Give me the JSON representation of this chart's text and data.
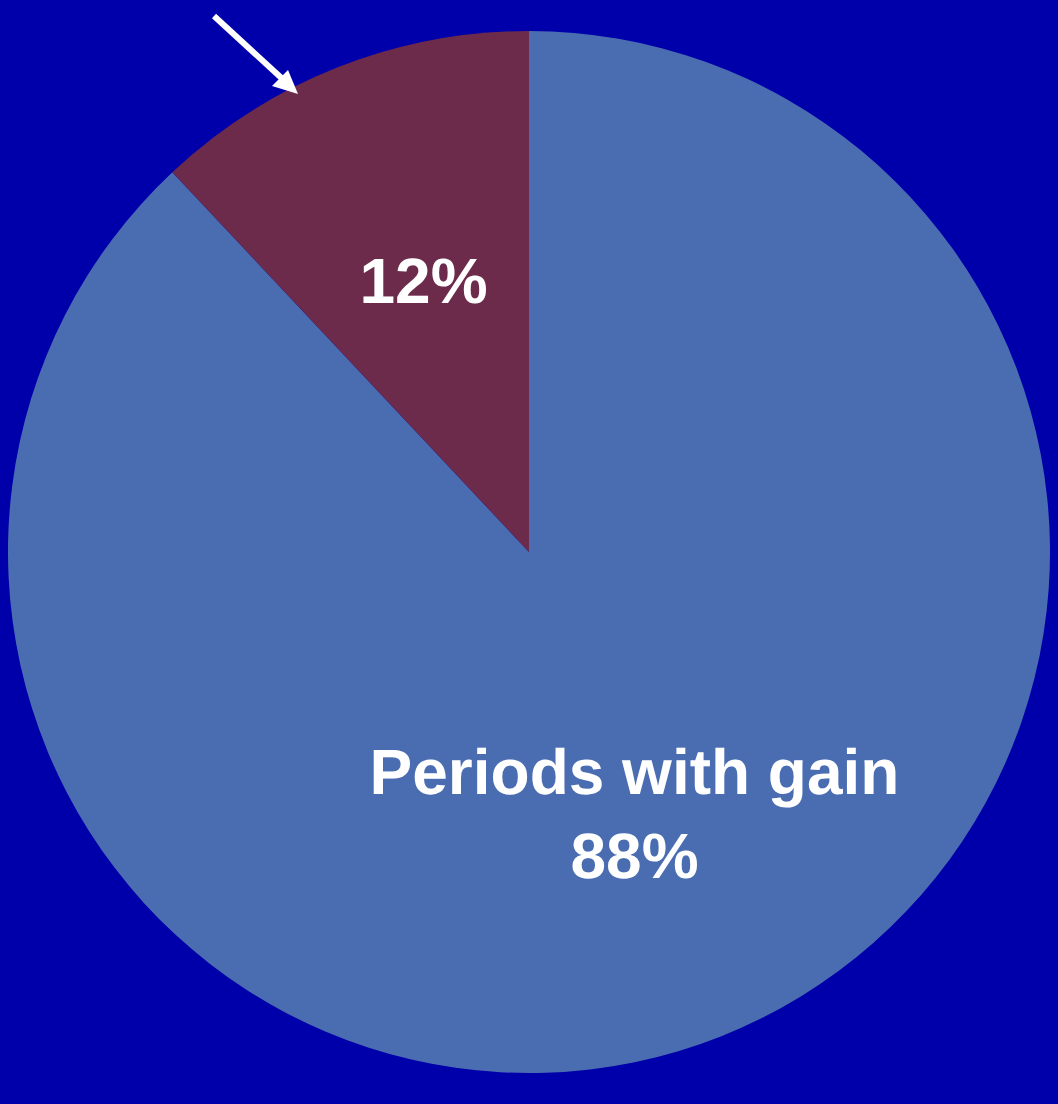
{
  "chart_data": {
    "type": "pie",
    "categories": [
      "Periods with gain",
      null
    ],
    "values": [
      88,
      12
    ],
    "colors": [
      "#4a6db2",
      "#6d2b4b"
    ],
    "value_labels": [
      "88%",
      "12%"
    ],
    "legend": false
  }
}
